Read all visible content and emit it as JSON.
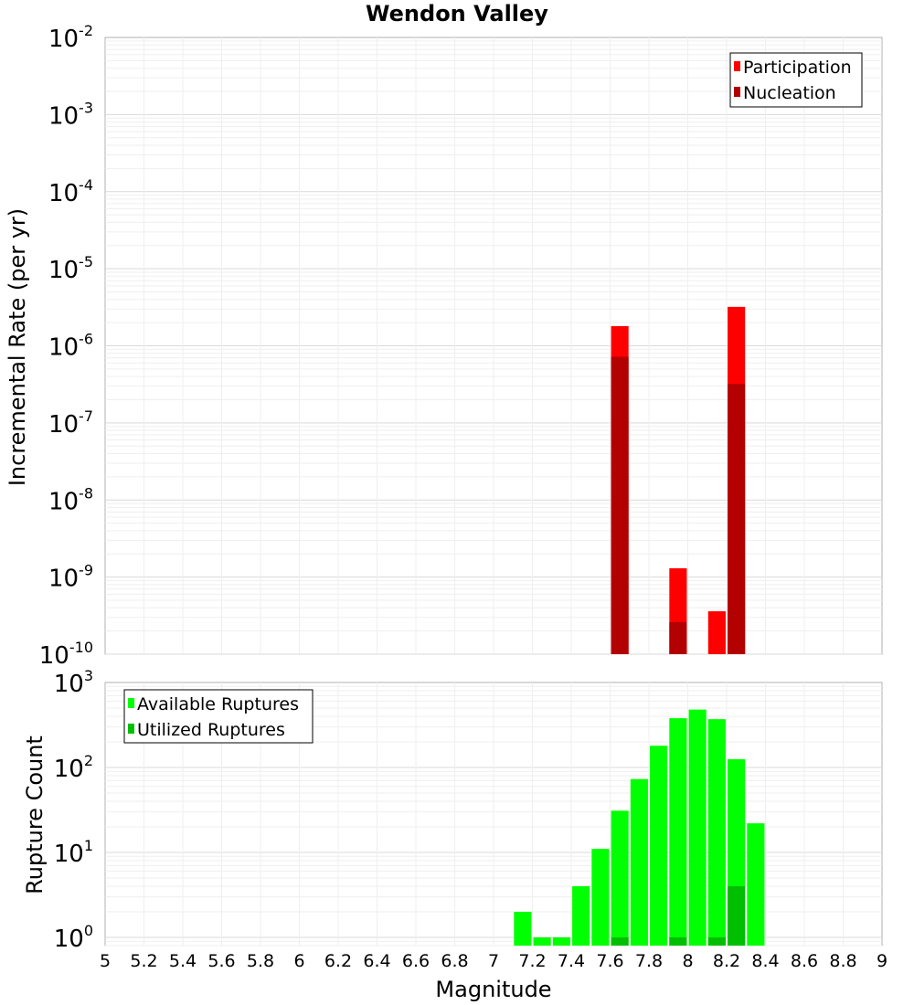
{
  "chart_data": [
    {
      "type": "bar",
      "title": "Wendon Valley",
      "xlabel": "",
      "ylabel": "Incremental Rate (per yr)",
      "yscale": "log",
      "ylim": [
        1e-10,
        0.01
      ],
      "xlim": [
        5,
        9
      ],
      "ytick_labels": [
        {
          "base": "10",
          "exp": "-2"
        },
        {
          "base": "10",
          "exp": "-3"
        },
        {
          "base": "10",
          "exp": "-4"
        },
        {
          "base": "10",
          "exp": "-5"
        },
        {
          "base": "10",
          "exp": "-6"
        },
        {
          "base": "10",
          "exp": "-7"
        },
        {
          "base": "10",
          "exp": "-8"
        },
        {
          "base": "10",
          "exp": "-9"
        },
        {
          "base": "10",
          "exp": "-10"
        }
      ],
      "legend_position": "top-right",
      "legend": [
        "Participation",
        "Nucleation"
      ],
      "series": [
        {
          "name": "Participation",
          "color": "#ff0000",
          "x": [
            7.65,
            7.95,
            8.15,
            8.25
          ],
          "values": [
            1.8e-06,
            1.3e-09,
            3.6e-10,
            3.2e-06
          ]
        },
        {
          "name": "Nucleation",
          "color": "#b30000",
          "x": [
            7.65,
            7.95,
            8.25
          ],
          "values": [
            7.2e-07,
            2.6e-10,
            3.2e-07
          ]
        }
      ],
      "grid": true
    },
    {
      "type": "bar",
      "title": "",
      "xlabel": "Magnitude",
      "ylabel": "Rupture Count",
      "yscale": "log",
      "ylim": [
        0.8,
        1000
      ],
      "xlim": [
        5,
        9
      ],
      "x_ticks": [
        "5",
        "5.2",
        "5.4",
        "5.6",
        "5.8",
        "6",
        "6.2",
        "6.4",
        "6.6",
        "6.8",
        "7",
        "7.2",
        "7.4",
        "7.6",
        "7.8",
        "8",
        "8.2",
        "8.4",
        "8.6",
        "8.8",
        "9"
      ],
      "ytick_labels": [
        {
          "base": "10",
          "exp": "3"
        },
        {
          "base": "10",
          "exp": "2"
        },
        {
          "base": "10",
          "exp": "1"
        },
        {
          "base": "10",
          "exp": "0"
        }
      ],
      "legend_position": "top-left",
      "legend": [
        "Available Ruptures",
        "Utilized Ruptures"
      ],
      "series": [
        {
          "name": "Available Ruptures",
          "color": "#00ff00",
          "x": [
            7.15,
            7.25,
            7.35,
            7.45,
            7.55,
            7.65,
            7.75,
            7.85,
            7.95,
            8.05,
            8.15,
            8.25,
            8.35
          ],
          "values": [
            2,
            1,
            1,
            4,
            11,
            31,
            73,
            180,
            380,
            480,
            370,
            125,
            22
          ]
        },
        {
          "name": "Utilized Ruptures",
          "color": "#00bf00",
          "x": [
            7.65,
            7.95,
            8.15,
            8.25
          ],
          "values": [
            1,
            1,
            1,
            4
          ]
        }
      ],
      "grid": true
    }
  ]
}
